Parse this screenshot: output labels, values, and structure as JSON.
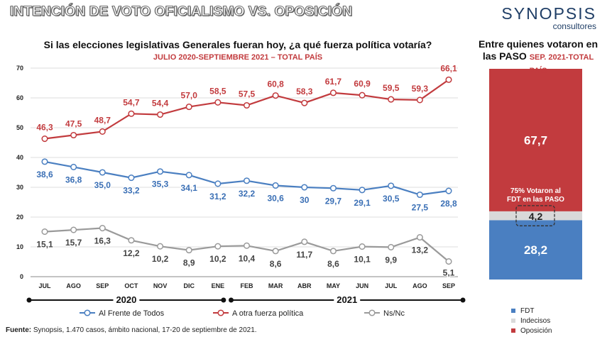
{
  "header": {
    "title": "INTENCIÓN DE VOTO OFICIALISMO VS. OPOSICIÓN",
    "brand_name": "SYNOPSIS",
    "brand_sub": "consultores"
  },
  "chart_data": [
    {
      "type": "line",
      "title": "Si las elecciones legislativas Generales fueran hoy, ¿a qué fuerza política votaría?",
      "subtitle": "JULIO 2020-SEPTIEMBRE 2021 – TOTAL PAÍS",
      "categories": [
        "JUL",
        "AGO",
        "SEP",
        "OCT",
        "NOV",
        "DIC",
        "ENE",
        "FEB",
        "MAR",
        "ABR",
        "MAY",
        "JUN",
        "JUL",
        "AGO",
        "SEP"
      ],
      "year_groups": [
        {
          "label": "2020",
          "from": 0,
          "to": 6
        },
        {
          "label": "2021",
          "from": 7,
          "to": 14
        }
      ],
      "ylim": [
        0,
        70
      ],
      "yticks": [
        0,
        10,
        20,
        30,
        40,
        50,
        60,
        70
      ],
      "grid": true,
      "legend_position": "bottom",
      "series": [
        {
          "name": "Al Frente de Todos",
          "color": "#4a7fc1",
          "values": [
            38.6,
            36.8,
            35.0,
            33.2,
            35.3,
            34.1,
            31.2,
            32.2,
            30.6,
            30,
            29.7,
            29.1,
            30.5,
            27.5,
            28.8
          ],
          "labels": [
            "38,6",
            "36,8",
            "35,0",
            "33,2",
            "35,3",
            "34,1",
            "31,2",
            "32,2",
            "30,6",
            "30",
            "29,7",
            "29,1",
            "30,5",
            "27,5",
            "28,8"
          ]
        },
        {
          "name": "A otra fuerza política",
          "color": "#c23b3e",
          "values": [
            46.3,
            47.5,
            48.7,
            54.7,
            54.4,
            57.0,
            58.5,
            57.5,
            60.8,
            58.3,
            61.7,
            60.9,
            59.5,
            59.3,
            66.1
          ],
          "labels": [
            "46,3",
            "47,5",
            "48,7",
            "54,7",
            "54,4",
            "57,0",
            "58,5",
            "57,5",
            "60,8",
            "58,3",
            "61,7",
            "60,9",
            "59,5",
            "59,3",
            "66,1"
          ]
        },
        {
          "name": "Ns/Nc",
          "color": "#9a9a9a",
          "values": [
            15.1,
            15.7,
            16.3,
            12.2,
            10.2,
            8.9,
            10.2,
            10.4,
            8.6,
            11.7,
            8.6,
            10.1,
            9.9,
            13.2,
            5.1
          ],
          "labels": [
            "15,1",
            "15,7",
            "16,3",
            "12,2",
            "10,2",
            "8,9",
            "10,2",
            "10,4",
            "8,6",
            "11,7",
            "8,6",
            "10,1",
            "9,9",
            "13,2",
            "5,1"
          ]
        }
      ]
    },
    {
      "type": "bar",
      "stacked": true,
      "title": "Entre quienes votaron en las PASO",
      "title_note": "SEP. 2021-TOTAL PAÍS",
      "series": [
        {
          "name": "FDT",
          "value": 28.2,
          "label": "28,2",
          "color": "#4a7fc1"
        },
        {
          "name": "Indecisos",
          "value": 4.2,
          "label": "4,2",
          "color": "#d9d9d9"
        },
        {
          "name": "Oposición",
          "value": 67.7,
          "label": "67,7",
          "color": "#c23b3e"
        }
      ],
      "annotation": "75% Votaron al FDT en las PASO",
      "legend_position": "bottom"
    }
  ],
  "footer": {
    "source_label": "Fuente:",
    "source_text": " Synopsis, 1.470 casos, ámbito nacional, 17-20 de septiembre de 2021."
  }
}
